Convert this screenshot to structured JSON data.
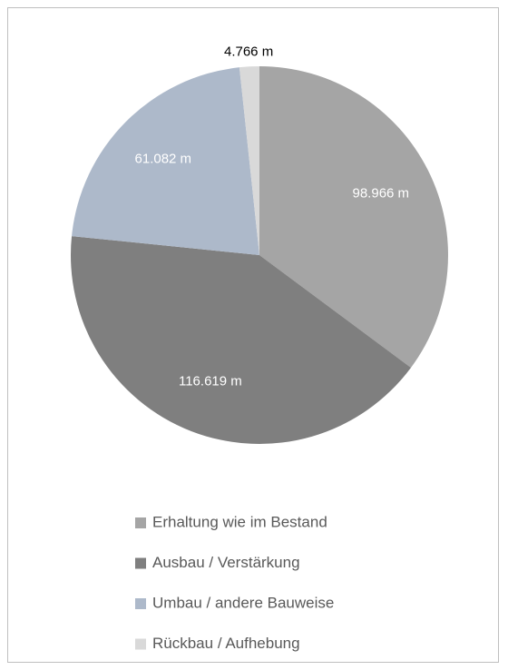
{
  "chart_data": {
    "type": "pie",
    "categories": [
      "Erhaltung wie im Bestand",
      "Ausbau / Verstärkung",
      "Umbau / andere Bauweise",
      "Rückbau  / Aufhebung"
    ],
    "values": [
      98966,
      116619,
      61082,
      4766
    ],
    "value_labels": [
      "98.966 m",
      "116.619 m",
      "61.082 m",
      "4.766 m"
    ],
    "colors": [
      "#a5a5a5",
      "#7f7f7f",
      "#adb9ca",
      "#d9d9d9"
    ],
    "legend": "bottom"
  }
}
